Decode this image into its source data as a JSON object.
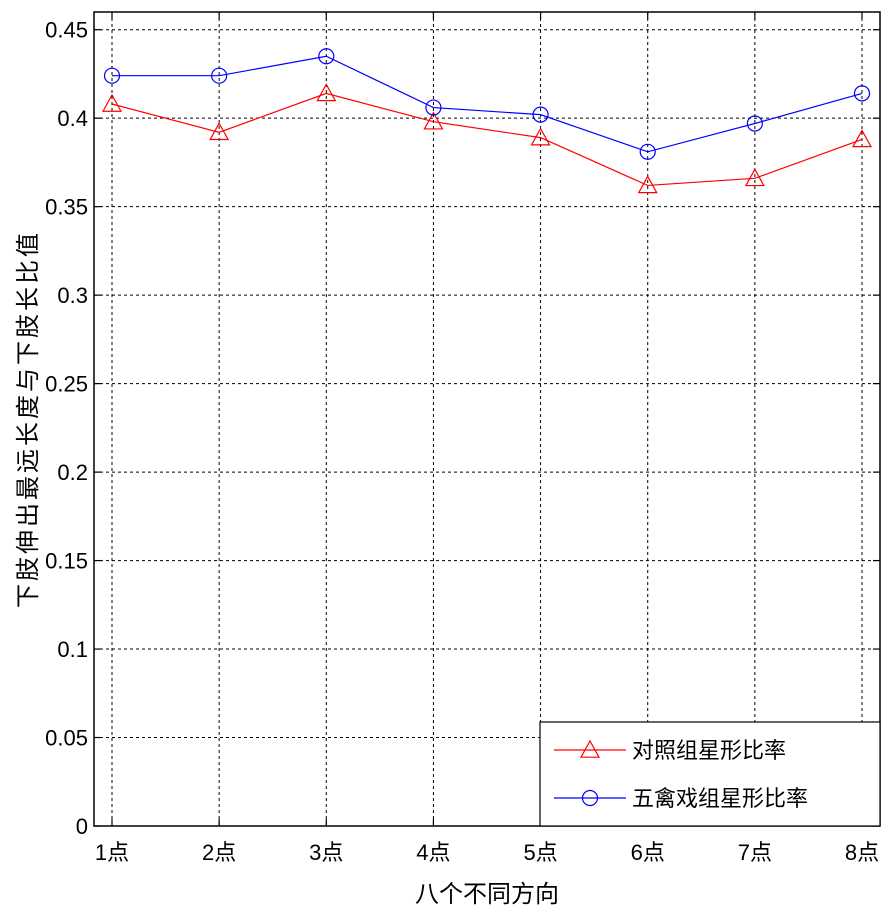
{
  "chart_data": {
    "type": "line",
    "title": "",
    "xlabel": "八个不同方向",
    "ylabel": "下肢伸出最远长度与下肢长比值",
    "categories": [
      "1点",
      "2点",
      "3点",
      "4点",
      "5点",
      "6点",
      "7点",
      "8点"
    ],
    "ylim": [
      0,
      0.46
    ],
    "yticks": [
      0,
      0.05,
      0.1,
      0.15,
      0.2,
      0.25,
      0.3,
      0.35,
      0.4,
      0.45
    ],
    "ytick_labels": [
      "0",
      "0.05",
      "0.1",
      "0.15",
      "0.2",
      "0.25",
      "0.3",
      "0.35",
      "0.4",
      "0.45"
    ],
    "grid": true,
    "legend_position": "bottom-right",
    "series": [
      {
        "name": "对照组星形比率",
        "color": "#ff0000",
        "marker": "triangle",
        "values": [
          0.408,
          0.392,
          0.414,
          0.398,
          0.389,
          0.362,
          0.366,
          0.388
        ]
      },
      {
        "name": "五禽戏组星形比率",
        "color": "#0000ff",
        "marker": "circle",
        "values": [
          0.424,
          0.424,
          0.435,
          0.406,
          0.402,
          0.381,
          0.397,
          0.414
        ]
      }
    ]
  }
}
